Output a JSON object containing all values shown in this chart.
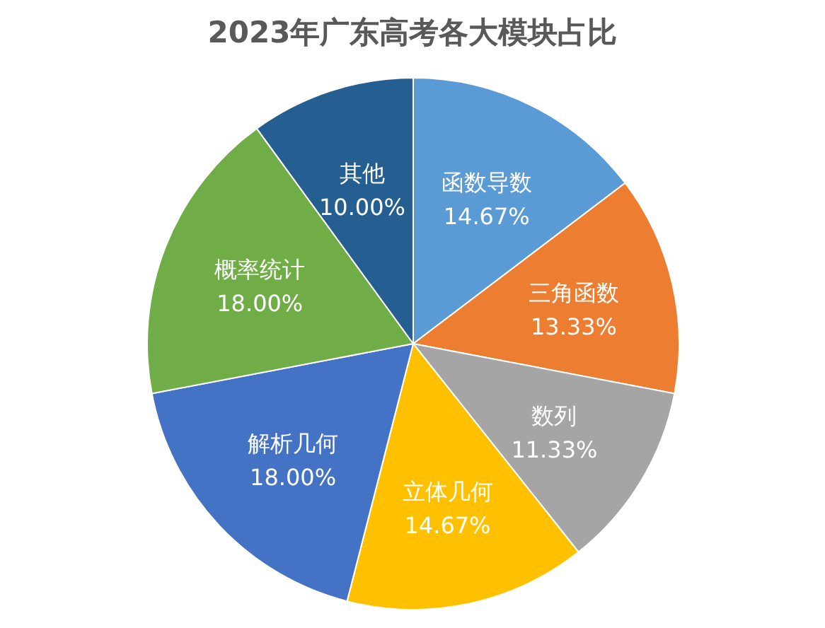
{
  "chart_data": {
    "type": "pie",
    "title": "2023年广东高考各大模块占比",
    "categories": [
      "函数导数",
      "三角函数",
      "数列",
      "立体几何",
      "解析几何",
      "概率统计",
      "其他"
    ],
    "values": [
      14.67,
      13.33,
      11.33,
      14.67,
      18.0,
      18.0,
      10.0
    ],
    "colors": [
      "#5b9bd5",
      "#ed7d31",
      "#a5a5a5",
      "#ffc000",
      "#4472c4",
      "#70ad47",
      "#255e91"
    ],
    "value_labels": [
      "14.67%",
      "13.33%",
      "11.33%",
      "14.67%",
      "18.00%",
      "18.00%",
      "10.00%"
    ]
  }
}
